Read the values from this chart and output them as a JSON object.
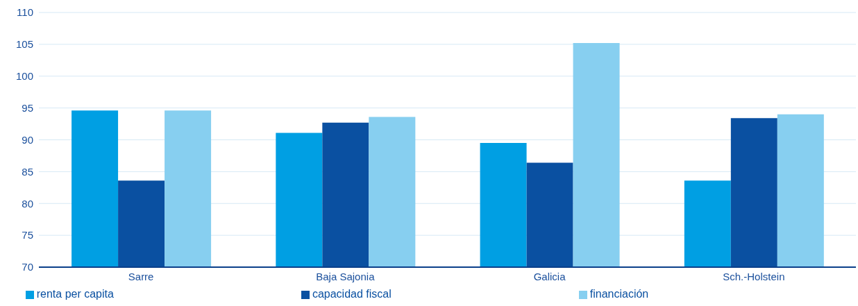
{
  "chart_data": {
    "type": "bar",
    "categories": [
      "Sarre",
      "Baja Sajonia",
      "Galicia",
      "Sch.-Holstein"
    ],
    "series": [
      {
        "name": "renta per capita",
        "color": "#009fe3",
        "values": [
          94.6,
          91.1,
          89.5,
          83.6
        ]
      },
      {
        "name": "capacidad fiscal",
        "color": "#0a50a1",
        "values": [
          83.6,
          92.7,
          86.4,
          93.4
        ]
      },
      {
        "name": "financiación",
        "color": "#87cff0",
        "values": [
          94.6,
          93.6,
          105.2,
          94.0
        ]
      }
    ],
    "ylim": [
      70,
      110
    ],
    "yticks": [
      70,
      75,
      80,
      85,
      90,
      95,
      100,
      105,
      110
    ],
    "grid": "y",
    "legend": "bottom"
  }
}
